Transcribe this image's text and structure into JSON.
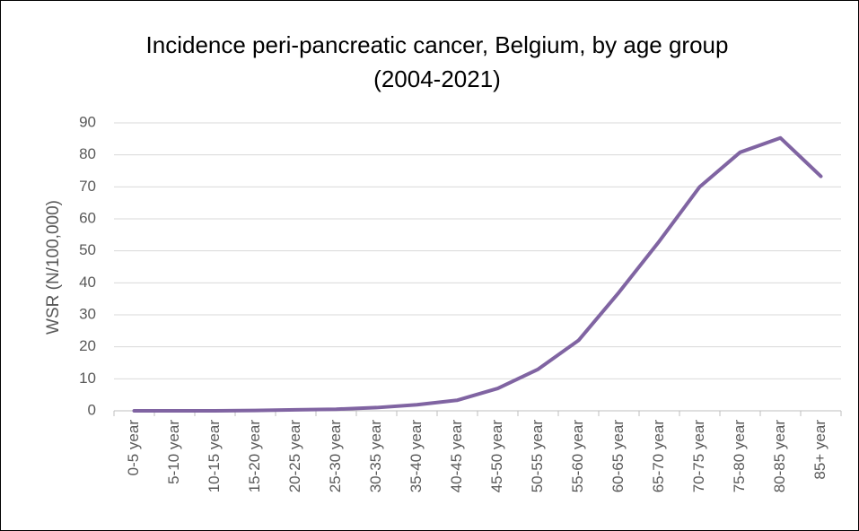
{
  "chart_data": {
    "type": "line",
    "title": [
      "Incidence peri-pancreatic cancer, Belgium, by age group",
      "(2004-2021)"
    ],
    "y_label": "WSR (N/100,000)",
    "categories": [
      "0-5 year",
      "5-10 year",
      "10-15 year",
      "15-20 year",
      "20-25 year",
      "25-30 year",
      "30-35 year",
      "35-40 year",
      "40-45 year",
      "45-50 year",
      "50-55 year",
      "55-60 year",
      "60-65 year",
      "65-70 year",
      "70-75 year",
      "75-80 year",
      "80-85 year",
      "85+ year"
    ],
    "values": [
      0,
      0,
      0,
      0.1,
      0.3,
      0.5,
      1,
      1.9,
      3.3,
      7,
      13,
      22,
      37,
      53,
      70,
      80.8,
      85.3,
      73.3
    ],
    "color": "#8064a2",
    "ylim": [
      0,
      90
    ],
    "yticks": [
      0,
      10,
      20,
      30,
      40,
      50,
      60,
      70,
      80,
      90
    ],
    "grid": true
  }
}
